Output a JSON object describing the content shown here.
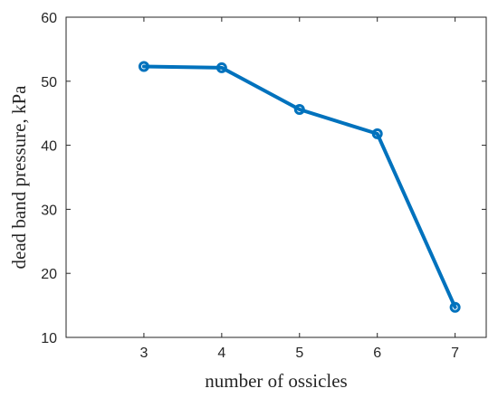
{
  "chart_data": {
    "type": "line",
    "title": "",
    "xlabel": "number of ossicles",
    "ylabel": "dead band pressure, kPa",
    "xlim": [
      2.0,
      7.4
    ],
    "ylim": [
      10,
      60
    ],
    "x_ticks": [
      3,
      4,
      5,
      6,
      7
    ],
    "y_ticks": [
      10,
      20,
      30,
      40,
      50,
      60
    ],
    "grid": false,
    "series": [
      {
        "x": [
          3,
          4,
          5,
          6,
          7
        ],
        "values": [
          52.3,
          52.1,
          45.6,
          41.8,
          14.7
        ],
        "color": "#0072BD",
        "marker": "circle"
      }
    ]
  }
}
